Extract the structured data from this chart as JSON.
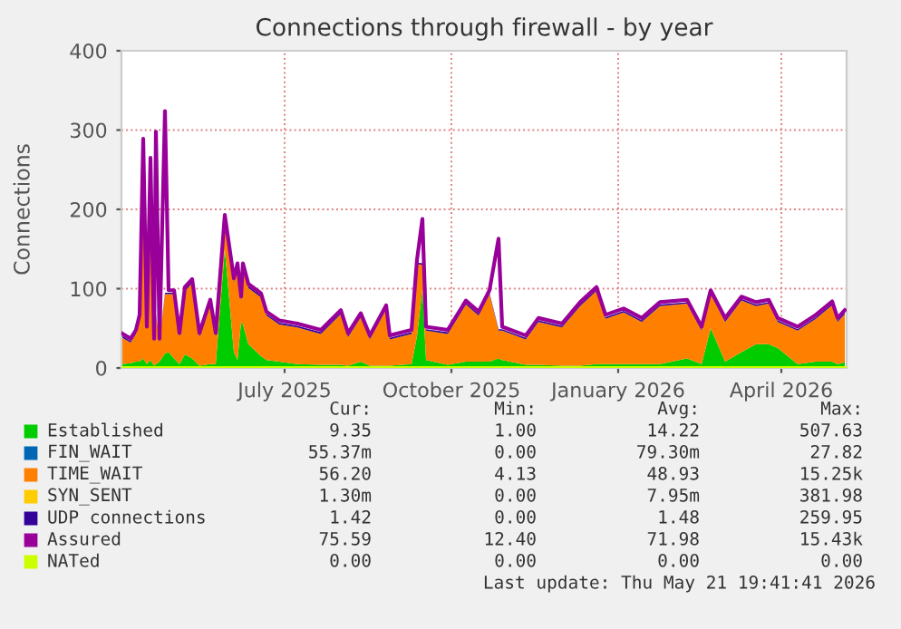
{
  "chart_data": {
    "type": "area",
    "title": "Connections through firewall - by year",
    "ylabel": "Connections",
    "x": [
      "2025-04-16",
      "2025-04-21",
      "2025-04-24",
      "2025-04-26",
      "2025-04-28",
      "2025-04-30",
      "2025-05-02",
      "2025-05-04",
      "2025-05-05",
      "2025-05-07",
      "2025-05-10",
      "2025-05-12",
      "2025-05-15",
      "2025-05-18",
      "2025-05-21",
      "2025-05-25",
      "2025-05-29",
      "2025-06-04",
      "2025-06-07",
      "2025-06-12",
      "2025-06-17",
      "2025-06-19",
      "2025-06-21",
      "2025-06-22",
      "2025-06-25",
      "2025-07-02",
      "2025-07-05",
      "2025-07-12",
      "2025-07-22",
      "2025-08-04",
      "2025-08-15",
      "2025-08-19",
      "2025-08-26",
      "2025-08-31",
      "2025-09-09",
      "2025-09-11",
      "2025-09-23",
      "2025-09-26",
      "2025-09-29",
      "2025-10-01",
      "2025-10-13",
      "2025-10-23",
      "2025-10-30",
      "2025-11-05",
      "2025-11-10",
      "2025-11-12",
      "2025-11-25",
      "2025-12-02",
      "2025-12-15",
      "2025-12-25",
      "2026-01-03",
      "2026-01-08",
      "2026-01-18",
      "2026-01-28",
      "2026-02-07",
      "2026-02-22",
      "2026-03-02",
      "2026-03-07",
      "2026-03-15",
      "2026-03-24",
      "2026-04-01",
      "2026-04-08",
      "2026-04-13",
      "2026-04-24",
      "2026-05-04",
      "2026-05-13",
      "2026-05-16",
      "2026-05-20"
    ],
    "stacked": true,
    "series": [
      {
        "name": "Established",
        "color": "#00cc00",
        "values": [
          5,
          6,
          8,
          8,
          12,
          5,
          10,
          3,
          5,
          8,
          18,
          20,
          12,
          5,
          17,
          12,
          3,
          5,
          5,
          150,
          20,
          10,
          58,
          55,
          30,
          15,
          10,
          8,
          5,
          4,
          4,
          3,
          8,
          3,
          3,
          3,
          5,
          40,
          100,
          10,
          4,
          8,
          8,
          8,
          12,
          10,
          4,
          4,
          3,
          3,
          5,
          5,
          5,
          5,
          5,
          12,
          5,
          50,
          8,
          20,
          30,
          30,
          25,
          5,
          8,
          8,
          5,
          7
        ]
      },
      {
        "name": "FIN_WAIT",
        "color": "#0066b3",
        "values": [
          null,
          null,
          null,
          null,
          null,
          null,
          null,
          null,
          null,
          null,
          null,
          null,
          null,
          null,
          null,
          null,
          null,
          null,
          null,
          null,
          null,
          null,
          null,
          null,
          null,
          null,
          null,
          null,
          null,
          null,
          null,
          null,
          null,
          null,
          null,
          null,
          null,
          null,
          null,
          null,
          null,
          null,
          null,
          null,
          null,
          null,
          null,
          null,
          null,
          null,
          null,
          null,
          null,
          null,
          null,
          null,
          null,
          null,
          null,
          null,
          null,
          null,
          null,
          null,
          null,
          null,
          null,
          null
        ]
      },
      {
        "name": "TIME_WAIT",
        "color": "#ff8000",
        "values": [
          34,
          26,
          35,
          54,
          240,
          42,
          240,
          29,
          60,
          24,
          75,
          73,
          81,
          34,
          80,
          95,
          36,
          76,
          34,
          38,
          88,
          117,
          27,
          72,
          71,
          74,
          56,
          47,
          46,
          39,
          64,
          36,
          56,
          33,
          71,
          33,
          38,
          91,
          30,
          37,
          39,
          72,
          58,
          85,
          35,
          37,
          32,
          54,
          48,
          75,
          92,
          57,
          65,
          53,
          73,
          69,
          42,
          43,
          50,
          65,
          48,
          51,
          33,
          42,
          54,
          71,
          53,
          61
        ]
      },
      {
        "name": "SYN_SENT",
        "color": "#ffcc00",
        "values": [
          null,
          null,
          null,
          null,
          null,
          null,
          null,
          null,
          null,
          null,
          null,
          null,
          null,
          null,
          null,
          null,
          null,
          null,
          null,
          null,
          null,
          null,
          null,
          null,
          null,
          null,
          null,
          null,
          null,
          null,
          null,
          null,
          null,
          null,
          null,
          null,
          null,
          null,
          null,
          null,
          null,
          null,
          null,
          null,
          null,
          null,
          null,
          null,
          null,
          null,
          null,
          null,
          null,
          null,
          null,
          null,
          null,
          null,
          null,
          null,
          null,
          null,
          null,
          null,
          null,
          null,
          null,
          null
        ]
      },
      {
        "name": "UDP connections",
        "color": "#330099",
        "values": [
          2,
          2,
          2,
          2,
          2,
          2,
          2,
          2,
          2,
          2,
          2,
          2,
          2,
          2,
          2,
          2,
          2,
          2,
          2,
          2,
          2,
          2,
          2,
          2,
          2,
          2,
          2,
          2,
          2,
          2,
          2,
          2,
          2,
          2,
          2,
          2,
          2,
          2,
          2,
          2,
          2,
          2,
          2,
          2,
          2,
          2,
          2,
          2,
          2,
          2,
          2,
          2,
          2,
          2,
          2,
          2,
          2,
          2,
          2,
          2,
          2,
          2,
          2,
          2,
          2,
          2,
          2,
          2
        ]
      },
      {
        "name": "Assured",
        "type": "line",
        "color": "#990099",
        "values": [
          44,
          37,
          48,
          67,
          289,
          52,
          265,
          37,
          298,
          37,
          324,
          98,
          98,
          44,
          102,
          112,
          44,
          86,
          44,
          193,
          113,
          132,
          90,
          132,
          106,
          94,
          71,
          60,
          56,
          48,
          73,
          44,
          69,
          41,
          79,
          41,
          48,
          136,
          188,
          52,
          48,
          85,
          71,
          98,
          163,
          52,
          41,
          63,
          56,
          83,
          102,
          67,
          75,
          63,
          83,
          86,
          52,
          98,
          63,
          90,
          83,
          86,
          63,
          52,
          67,
          84,
          63,
          73
        ]
      },
      {
        "name": "NATed",
        "type": "line",
        "color": "#ccff00",
        "values": [
          0,
          0,
          0,
          0,
          0,
          0,
          0,
          0,
          0,
          0,
          0,
          0,
          0,
          0,
          0,
          0,
          0,
          0,
          0,
          0,
          0,
          0,
          0,
          0,
          0,
          0,
          0,
          0,
          0,
          0,
          0,
          0,
          0,
          0,
          0,
          0,
          0,
          0,
          0,
          0,
          0,
          0,
          0,
          0,
          0,
          0,
          0,
          0,
          0,
          0,
          0,
          0,
          0,
          0,
          0,
          0,
          0,
          0,
          0,
          0,
          0,
          0,
          0,
          0,
          0,
          0,
          0,
          0
        ]
      }
    ],
    "xlim": [
      "2025-04-16",
      "2026-05-21"
    ],
    "xticks": [
      {
        "value": "2025-07-15",
        "label": "July 2025"
      },
      {
        "value": "2025-10-15",
        "label": "October 2025"
      },
      {
        "value": "2026-01-15",
        "label": "January 2026"
      },
      {
        "value": "2026-04-15",
        "label": "April 2026"
      }
    ],
    "ylim": [
      0,
      400
    ],
    "yticks": [
      0,
      100,
      200,
      300,
      400
    ],
    "grid": true,
    "legend": "bottom",
    "annotations": [
      "Cur:",
      "Min:",
      "Avg:",
      "Max:",
      "9.35",
      "1.00",
      "14.22",
      "507.63",
      "55.37m",
      "0.00",
      "79.30m",
      "27.82",
      "56.20",
      "4.13",
      "48.93",
      "15.25k",
      "1.30m",
      "0.00",
      "7.95m",
      "381.98",
      "1.42",
      "0.00",
      "1.48",
      "259.95",
      "75.59",
      "12.40",
      "71.98",
      "15.43k",
      "0.00",
      "0.00",
      "0.00",
      "0.00",
      "Last update: Thu May 21 19:41:41 2026"
    ]
  }
}
